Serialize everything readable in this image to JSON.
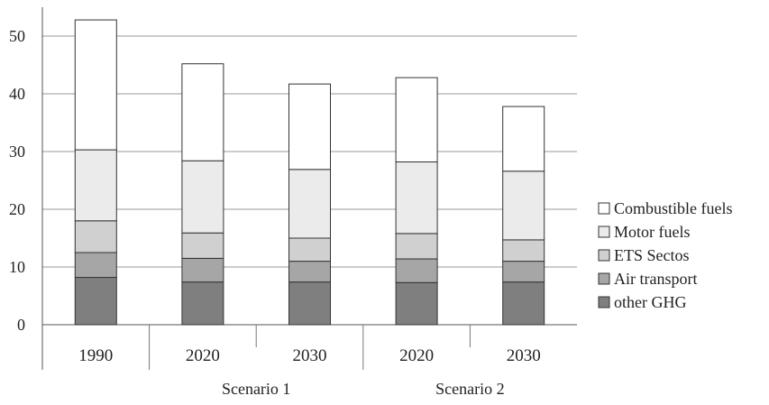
{
  "chart_data": {
    "type": "bar",
    "stacked": true,
    "categories": [
      "1990",
      "2020",
      "2030",
      "2020",
      "2030"
    ],
    "groups": [
      {
        "label": "",
        "categories": [
          "1990"
        ]
      },
      {
        "label": "Scenario 1",
        "categories": [
          "2020",
          "2030"
        ]
      },
      {
        "label": "Scenario 2",
        "categories": [
          "2020",
          "2030"
        ]
      }
    ],
    "series": [
      {
        "name": "other GHG",
        "color": "#7f7f7f",
        "values": [
          8.2,
          7.4,
          7.4,
          7.3,
          7.4
        ]
      },
      {
        "name": "Air transport",
        "color": "#a6a6a6",
        "values": [
          4.3,
          4.1,
          3.6,
          4.1,
          3.6
        ]
      },
      {
        "name": "ETS Sectos",
        "color": "#d0d0d0",
        "values": [
          5.5,
          4.4,
          4.0,
          4.4,
          3.7
        ]
      },
      {
        "name": "Motor fuels",
        "color": "#ebebeb",
        "values": [
          12.3,
          12.5,
          11.9,
          12.4,
          11.9
        ]
      },
      {
        "name": "Combustible fuels",
        "color": "#ffffff",
        "values": [
          22.5,
          16.8,
          14.8,
          14.6,
          11.2
        ]
      }
    ],
    "legend_order": [
      "Combustible fuels",
      "Motor fuels",
      "ETS Sectos",
      "Air transport",
      "other GHG"
    ],
    "yticks": [
      "0",
      "10",
      "20",
      "30",
      "40",
      "50"
    ],
    "ylim": [
      0,
      55
    ],
    "grid": true,
    "legend_position": "right"
  }
}
